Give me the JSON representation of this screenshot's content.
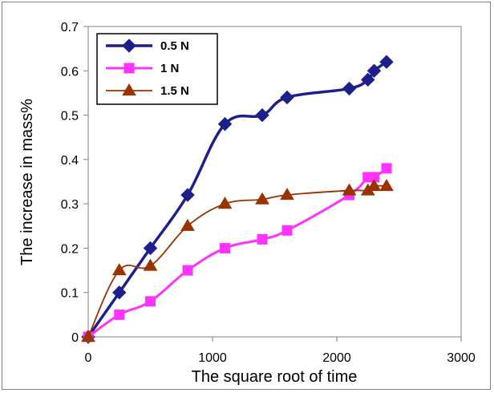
{
  "chart_data": {
    "type": "line",
    "xlabel": "The square root of time",
    "ylabel": "The increase in mass%",
    "xlim": [
      0,
      3000
    ],
    "ylim": [
      0,
      0.7
    ],
    "x_ticks": [
      "0",
      "1000",
      "2000",
      "3000"
    ],
    "y_ticks": [
      "0",
      "0.1",
      "0.2",
      "0.3",
      "0.4",
      "0.5",
      "0.6",
      "0.7"
    ],
    "grid": false,
    "legend_position": "top-left",
    "series": [
      {
        "name": "0.5 N",
        "color": "#1F1F8C",
        "marker": "diamond",
        "points": [
          [
            0,
            0
          ],
          [
            250,
            0.1
          ],
          [
            500,
            0.2
          ],
          [
            800,
            0.32
          ],
          [
            1100,
            0.48
          ],
          [
            1400,
            0.5
          ],
          [
            1600,
            0.54
          ],
          [
            2100,
            0.56
          ],
          [
            2250,
            0.58
          ],
          [
            2300,
            0.6
          ],
          [
            2400,
            0.62
          ]
        ]
      },
      {
        "name": "1 N",
        "color": "#FF33FF",
        "marker": "square",
        "points": [
          [
            0,
            0
          ],
          [
            250,
            0.05
          ],
          [
            500,
            0.08
          ],
          [
            800,
            0.15
          ],
          [
            1100,
            0.2
          ],
          [
            1400,
            0.22
          ],
          [
            1600,
            0.24
          ],
          [
            2100,
            0.32
          ],
          [
            2250,
            0.36
          ],
          [
            2300,
            0.36
          ],
          [
            2400,
            0.38
          ]
        ]
      },
      {
        "name": "1.5 N",
        "color": "#993300",
        "marker": "triangle",
        "points": [
          [
            0,
            0
          ],
          [
            250,
            0.15
          ],
          [
            500,
            0.16
          ],
          [
            800,
            0.25
          ],
          [
            1100,
            0.3
          ],
          [
            1400,
            0.31
          ],
          [
            1600,
            0.32
          ],
          [
            2100,
            0.33
          ],
          [
            2250,
            0.33
          ],
          [
            2300,
            0.34
          ],
          [
            2400,
            0.34
          ]
        ]
      }
    ]
  }
}
